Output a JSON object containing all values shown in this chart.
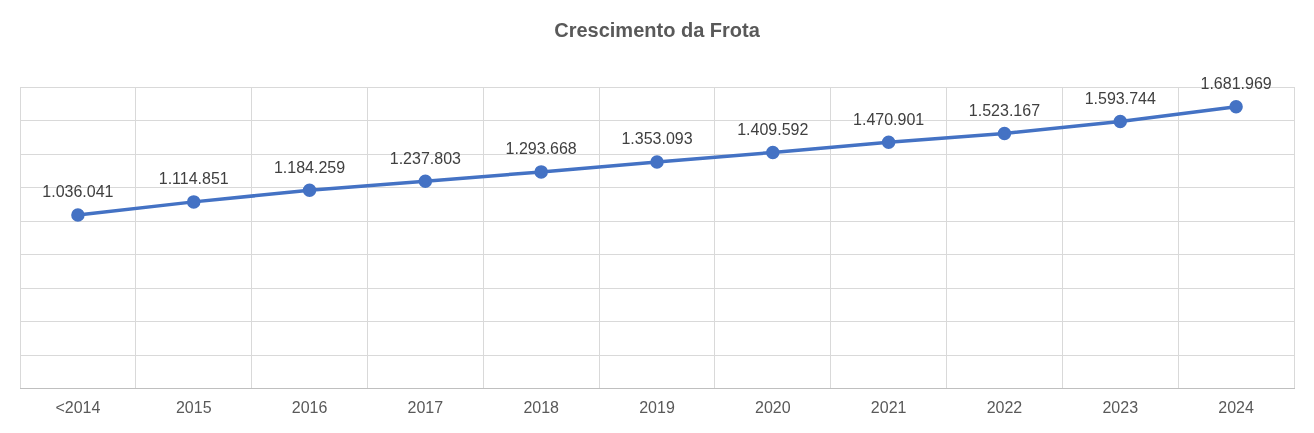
{
  "chart_data": {
    "type": "line",
    "title": "Crescimento da Frota",
    "categories": [
      "<2014",
      "2015",
      "2016",
      "2017",
      "2018",
      "2019",
      "2020",
      "2021",
      "2022",
      "2023",
      "2024"
    ],
    "series": [
      {
        "color": "#4472c4",
        "values": [
          1036041,
          1114851,
          1184259,
          1237803,
          1293668,
          1353093,
          1409592,
          1470901,
          1523167,
          1593744,
          1681969
        ],
        "value_labels": [
          "1.036.041",
          "1.114.851",
          "1.184.259",
          "1.237.803",
          "1.293.668",
          "1.353.093",
          "1.409.592",
          "1.470.901",
          "1.523.167",
          "1.593.744",
          "1.681.969"
        ]
      }
    ],
    "ylim": [
      0,
      1800000
    ],
    "yticks": [
      {
        "value": 0,
        "label": null
      },
      {
        "value": 200000,
        "label": null
      },
      {
        "value": 400000,
        "label": null
      },
      {
        "value": 600000,
        "label": null
      },
      {
        "value": 800000,
        "label": null
      },
      {
        "value": 1000000,
        "label": null
      },
      {
        "value": 1200000,
        "label": null
      },
      {
        "value": 1400000,
        "label": null
      },
      {
        "value": 1600000,
        "label": null
      },
      {
        "value": 1800000,
        "label": null
      }
    ],
    "tick_labels": "x",
    "grid": true,
    "legend": false,
    "marker": "circle",
    "line_style": "solid"
  }
}
